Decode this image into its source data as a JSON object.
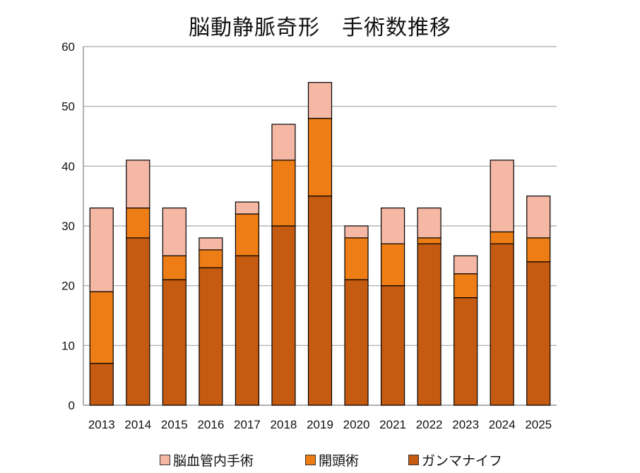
{
  "chart_data": {
    "type": "bar",
    "stacked": true,
    "title": "脳動静脈奇形　手術数推移",
    "xlabel": "",
    "ylabel": "",
    "ylim": [
      0,
      60
    ],
    "yticks": [
      0,
      10,
      20,
      30,
      40,
      50,
      60
    ],
    "grid": true,
    "legend_position": "bottom",
    "categories": [
      "2013",
      "2014",
      "2015",
      "2016",
      "2017",
      "2018",
      "2019",
      "2020",
      "2021",
      "2022",
      "2023",
      "2024",
      "2025"
    ],
    "series": [
      {
        "name": "ガンマナイフ",
        "color": "#c55a11",
        "values": [
          7,
          28,
          21,
          23,
          25,
          30,
          35,
          21,
          20,
          27,
          18,
          27,
          24
        ]
      },
      {
        "name": "開頭術",
        "color": "#ed7d14",
        "values": [
          12,
          5,
          4,
          3,
          7,
          11,
          13,
          7,
          7,
          1,
          4,
          2,
          4
        ]
      },
      {
        "name": "脳血管内手術",
        "color": "#f4b8a4",
        "values": [
          14,
          8,
          8,
          2,
          2,
          6,
          6,
          2,
          6,
          5,
          3,
          12,
          7
        ]
      }
    ],
    "legend_order": [
      "脳血管内手術",
      "開頭術",
      "ガンマナイフ"
    ]
  }
}
